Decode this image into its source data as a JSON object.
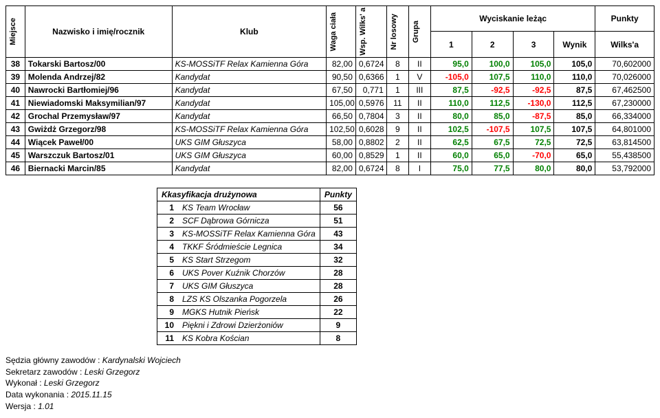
{
  "headers": {
    "miejsce": "Miejsce",
    "nazwisko": "Nazwisko i imię/rocznik",
    "klub": "Klub",
    "waga": "Waga ciała",
    "wsp": "Wsp. Wilks' a",
    "nr": "Nr losowy",
    "grupa": "Grupa",
    "wyciskanie": "Wyciskanie leżąc",
    "punkty": "Punkty",
    "a1": "1",
    "a2": "2",
    "a3": "3",
    "wynik": "Wynik",
    "wilksa": "Wilks'a"
  },
  "rows": [
    {
      "p": "38",
      "n": "Tokarski Bartosz/00",
      "k": "KS-MOSSiTF Relax Kamienna Góra",
      "w": "82,00",
      "ws": "0,6724",
      "nr": "8",
      "g": "II",
      "a1": "95,0",
      "a2": "100,0",
      "a3": "105,0",
      "wy": "105,0",
      "pk": "70,602000",
      "c1": "g",
      "c2": "g",
      "c3": "g"
    },
    {
      "p": "39",
      "n": "Molenda Andrzej/82",
      "k": "Kandydat",
      "w": "90,50",
      "ws": "0,6366",
      "nr": "1",
      "g": "V",
      "a1": "-105,0",
      "a2": "107,5",
      "a3": "110,0",
      "wy": "110,0",
      "pk": "70,026000",
      "c1": "r",
      "c2": "g",
      "c3": "g"
    },
    {
      "p": "40",
      "n": "Nawrocki Bartłomiej/96",
      "k": "Kandydat",
      "w": "67,50",
      "ws": "0,771",
      "nr": "1",
      "g": "III",
      "a1": "87,5",
      "a2": "-92,5",
      "a3": "-92,5",
      "wy": "87,5",
      "pk": "67,462500",
      "c1": "g",
      "c2": "r",
      "c3": "r"
    },
    {
      "p": "41",
      "n": "Niewiadomski Maksymilian/97",
      "k": "Kandydat",
      "w": "105,00",
      "ws": "0,5976",
      "nr": "11",
      "g": "II",
      "a1": "110,0",
      "a2": "112,5",
      "a3": "-130,0",
      "wy": "112,5",
      "pk": "67,230000",
      "c1": "g",
      "c2": "g",
      "c3": "r"
    },
    {
      "p": "42",
      "n": "Grochal Przemysław/97",
      "k": "Kandydat",
      "w": "66,50",
      "ws": "0,7804",
      "nr": "3",
      "g": "II",
      "a1": "80,0",
      "a2": "85,0",
      "a3": "-87,5",
      "wy": "85,0",
      "pk": "66,334000",
      "c1": "g",
      "c2": "g",
      "c3": "r"
    },
    {
      "p": "43",
      "n": "Gwiżdż Grzegorz/98",
      "k": "KS-MOSSiTF Relax Kamienna Góra",
      "w": "102,50",
      "ws": "0,6028",
      "nr": "9",
      "g": "II",
      "a1": "102,5",
      "a2": "-107,5",
      "a3": "107,5",
      "wy": "107,5",
      "pk": "64,801000",
      "c1": "g",
      "c2": "r",
      "c3": "g"
    },
    {
      "p": "44",
      "n": "Wiącek Paweł/00",
      "k": "UKS GIM Głuszyca",
      "w": "58,00",
      "ws": "0,8802",
      "nr": "2",
      "g": "II",
      "a1": "62,5",
      "a2": "67,5",
      "a3": "72,5",
      "wy": "72,5",
      "pk": "63,814500",
      "c1": "g",
      "c2": "g",
      "c3": "g"
    },
    {
      "p": "45",
      "n": "Warszczuk Bartosz/01",
      "k": "UKS GIM Głuszyca",
      "w": "60,00",
      "ws": "0,8529",
      "nr": "1",
      "g": "II",
      "a1": "60,0",
      "a2": "65,0",
      "a3": "-70,0",
      "wy": "65,0",
      "pk": "55,438500",
      "c1": "g",
      "c2": "g",
      "c3": "r"
    },
    {
      "p": "46",
      "n": "Biernacki Marcin/85",
      "k": "Kandydat",
      "w": "82,00",
      "ws": "0,6724",
      "nr": "8",
      "g": "I",
      "a1": "75,0",
      "a2": "77,5",
      "a3": "80,0",
      "wy": "80,0",
      "pk": "53,792000",
      "c1": "g",
      "c2": "g",
      "c3": "g"
    }
  ],
  "team_header": {
    "title": "Kkasyfikacja drużynowa",
    "pts": "Punkty"
  },
  "teams": [
    {
      "r": "1",
      "n": "KS Team Wrocław",
      "p": "56"
    },
    {
      "r": "2",
      "n": "SCF Dąbrowa Górnicza",
      "p": "51"
    },
    {
      "r": "3",
      "n": "KS-MOSSiTF Relax Kamienna Góra",
      "p": "43"
    },
    {
      "r": "4",
      "n": "TKKF Śródmieście Legnica",
      "p": "34"
    },
    {
      "r": "5",
      "n": "KS Start Strzegom",
      "p": "32"
    },
    {
      "r": "6",
      "n": "UKS Pover Kuźnik Chorzów",
      "p": "28"
    },
    {
      "r": "7",
      "n": "UKS GIM Głuszyca",
      "p": "28"
    },
    {
      "r": "8",
      "n": "LZS KS Olszanka Pogorzela",
      "p": "26"
    },
    {
      "r": "9",
      "n": "MGKS Hutnik Pieńsk",
      "p": "22"
    },
    {
      "r": "10",
      "n": "Piękni i Zdrowi Dzierżoniów",
      "p": "9"
    },
    {
      "r": "11",
      "n": "KS Kobra Kościan",
      "p": "8"
    }
  ],
  "footer": {
    "l1a": "Sędzia główny zawodów :  ",
    "l1b": "Kardynalski Wojciech",
    "l2a": "Sekretarz zawodów : ",
    "l2b": "Leski Grzegorz",
    "l3a": "Wykonał : ",
    "l3b": "Leski Grzegorz",
    "l4a": "Data wykonania : ",
    "l4b": "2015.11.15",
    "l5a": "Wersja : ",
    "l5b": "1.01"
  }
}
